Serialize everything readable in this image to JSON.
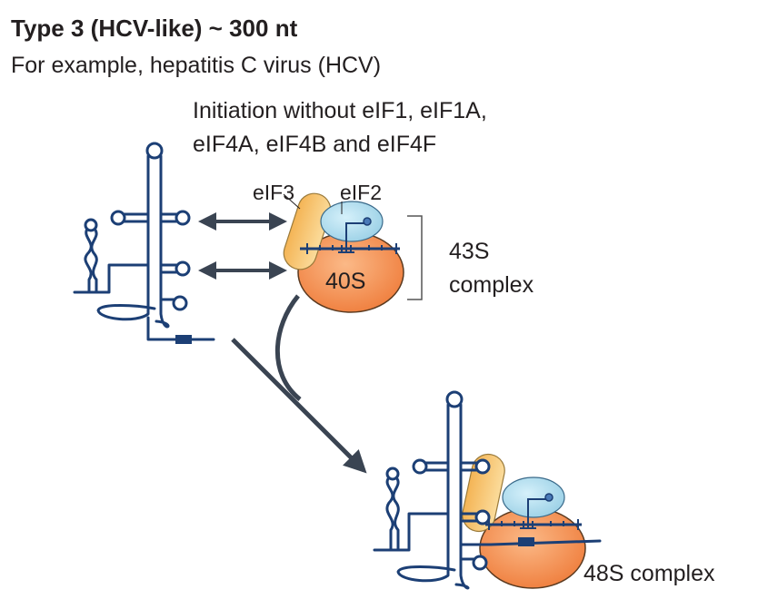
{
  "title": "Type 3 (HCV-like) ~ 300 nt",
  "subtitle": "For example, hepatitis C virus (HCV)",
  "note_line1": "Initiation without eIF1, eIF1A,",
  "note_line2": "eIF4A, eIF4B and eIF4F",
  "labels": {
    "eif3": "eIF3",
    "eif2": "eIF2",
    "ribosome": "40S",
    "complex43_line1": "43S",
    "complex43_line2": "complex",
    "complex48": "48S complex"
  },
  "colors": {
    "rna": "#1c3f75",
    "ribosome": "#f28a4f",
    "eif3": "#f6c06b",
    "eif2": "#a9d8ea",
    "arrow": "#3a4452"
  }
}
